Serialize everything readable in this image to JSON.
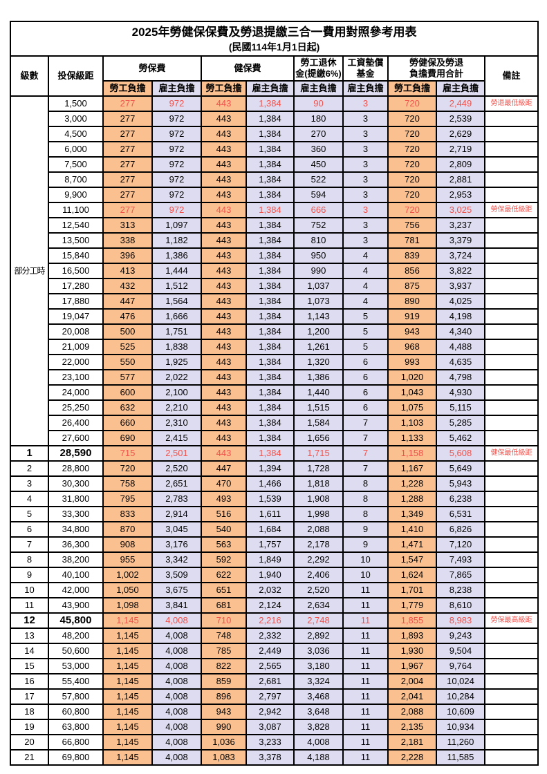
{
  "title": "2025年勞健保保費及勞退提繳三合一費用對照參考用表",
  "subtitle": "(民國114年1月1日起)",
  "colors": {
    "labor_self_bg": "#fac090",
    "employer_bg": "#dedcf0",
    "highlight_red": "#f0524c",
    "border": "#000000"
  },
  "table": {
    "header": {
      "level": "級數",
      "base": "投保級距",
      "labor": "勞保費",
      "health": "健保費",
      "pension_l1": "勞工退休",
      "pension_l2": "金(提繳6%)",
      "wage_l1": "工資墊償",
      "wage_l2": "基金",
      "total_l1": "勞健保及勞退",
      "total_l2": "負擔費用合計",
      "note": "備註",
      "self": "勞工負擔",
      "employer": "雇主負擔"
    },
    "group_label": "部分工時",
    "group_rowspan": 23,
    "rows": [
      {
        "level": "",
        "base": "1,500",
        "v": [
          "277",
          "972",
          "443",
          "1,384",
          "90",
          "3",
          "720",
          "2,449"
        ],
        "note": "勞退最低級距",
        "red": true,
        "big": false
      },
      {
        "level": "",
        "base": "3,000",
        "v": [
          "277",
          "972",
          "443",
          "1,384",
          "180",
          "3",
          "720",
          "2,539"
        ],
        "note": "",
        "red": false,
        "big": false
      },
      {
        "level": "",
        "base": "4,500",
        "v": [
          "277",
          "972",
          "443",
          "1,384",
          "270",
          "3",
          "720",
          "2,629"
        ],
        "note": "",
        "red": false,
        "big": false
      },
      {
        "level": "",
        "base": "6,000",
        "v": [
          "277",
          "972",
          "443",
          "1,384",
          "360",
          "3",
          "720",
          "2,719"
        ],
        "note": "",
        "red": false,
        "big": false
      },
      {
        "level": "",
        "base": "7,500",
        "v": [
          "277",
          "972",
          "443",
          "1,384",
          "450",
          "3",
          "720",
          "2,809"
        ],
        "note": "",
        "red": false,
        "big": false
      },
      {
        "level": "",
        "base": "8,700",
        "v": [
          "277",
          "972",
          "443",
          "1,384",
          "522",
          "3",
          "720",
          "2,881"
        ],
        "note": "",
        "red": false,
        "big": false
      },
      {
        "level": "",
        "base": "9,900",
        "v": [
          "277",
          "972",
          "443",
          "1,384",
          "594",
          "3",
          "720",
          "2,953"
        ],
        "note": "",
        "red": false,
        "big": false
      },
      {
        "level": "",
        "base": "11,100",
        "v": [
          "277",
          "972",
          "443",
          "1,384",
          "666",
          "3",
          "720",
          "3,025"
        ],
        "note": "勞保最低級距",
        "red": true,
        "big": false
      },
      {
        "level": "",
        "base": "12,540",
        "v": [
          "313",
          "1,097",
          "443",
          "1,384",
          "752",
          "3",
          "756",
          "3,237"
        ],
        "note": "",
        "red": false,
        "big": false
      },
      {
        "level": "",
        "base": "13,500",
        "v": [
          "338",
          "1,182",
          "443",
          "1,384",
          "810",
          "3",
          "781",
          "3,379"
        ],
        "note": "",
        "red": false,
        "big": false
      },
      {
        "level": "",
        "base": "15,840",
        "v": [
          "396",
          "1,386",
          "443",
          "1,384",
          "950",
          "4",
          "839",
          "3,724"
        ],
        "note": "",
        "red": false,
        "big": false
      },
      {
        "level": "",
        "base": "16,500",
        "v": [
          "413",
          "1,444",
          "443",
          "1,384",
          "990",
          "4",
          "856",
          "3,822"
        ],
        "note": "",
        "red": false,
        "big": false
      },
      {
        "level": "",
        "base": "17,280",
        "v": [
          "432",
          "1,512",
          "443",
          "1,384",
          "1,037",
          "4",
          "875",
          "3,937"
        ],
        "note": "",
        "red": false,
        "big": false
      },
      {
        "level": "",
        "base": "17,880",
        "v": [
          "447",
          "1,564",
          "443",
          "1,384",
          "1,073",
          "4",
          "890",
          "4,025"
        ],
        "note": "",
        "red": false,
        "big": false
      },
      {
        "level": "",
        "base": "19,047",
        "v": [
          "476",
          "1,666",
          "443",
          "1,384",
          "1,143",
          "5",
          "919",
          "4,198"
        ],
        "note": "",
        "red": false,
        "big": false
      },
      {
        "level": "",
        "base": "20,008",
        "v": [
          "500",
          "1,751",
          "443",
          "1,384",
          "1,200",
          "5",
          "943",
          "4,340"
        ],
        "note": "",
        "red": false,
        "big": false
      },
      {
        "level": "",
        "base": "21,009",
        "v": [
          "525",
          "1,838",
          "443",
          "1,384",
          "1,261",
          "5",
          "968",
          "4,488"
        ],
        "note": "",
        "red": false,
        "big": false
      },
      {
        "level": "",
        "base": "22,000",
        "v": [
          "550",
          "1,925",
          "443",
          "1,384",
          "1,320",
          "6",
          "993",
          "4,635"
        ],
        "note": "",
        "red": false,
        "big": false
      },
      {
        "level": "",
        "base": "23,100",
        "v": [
          "577",
          "2,022",
          "443",
          "1,384",
          "1,386",
          "6",
          "1,020",
          "4,798"
        ],
        "note": "",
        "red": false,
        "big": false
      },
      {
        "level": "",
        "base": "24,000",
        "v": [
          "600",
          "2,100",
          "443",
          "1,384",
          "1,440",
          "6",
          "1,043",
          "4,930"
        ],
        "note": "",
        "red": false,
        "big": false
      },
      {
        "level": "",
        "base": "25,250",
        "v": [
          "632",
          "2,210",
          "443",
          "1,384",
          "1,515",
          "6",
          "1,075",
          "5,115"
        ],
        "note": "",
        "red": false,
        "big": false
      },
      {
        "level": "",
        "base": "26,400",
        "v": [
          "660",
          "2,310",
          "443",
          "1,384",
          "1,584",
          "7",
          "1,103",
          "5,285"
        ],
        "note": "",
        "red": false,
        "big": false
      },
      {
        "level": "",
        "base": "27,600",
        "v": [
          "690",
          "2,415",
          "443",
          "1,384",
          "1,656",
          "7",
          "1,133",
          "5,462"
        ],
        "note": "",
        "red": false,
        "big": false
      },
      {
        "level": "1",
        "base": "28,590",
        "v": [
          "715",
          "2,501",
          "443",
          "1,384",
          "1,715",
          "7",
          "1,158",
          "5,608"
        ],
        "note": "健保最低級距",
        "red": true,
        "big": true
      },
      {
        "level": "2",
        "base": "28,800",
        "v": [
          "720",
          "2,520",
          "447",
          "1,394",
          "1,728",
          "7",
          "1,167",
          "5,649"
        ],
        "note": "",
        "red": false,
        "big": false
      },
      {
        "level": "3",
        "base": "30,300",
        "v": [
          "758",
          "2,651",
          "470",
          "1,466",
          "1,818",
          "8",
          "1,228",
          "5,943"
        ],
        "note": "",
        "red": false,
        "big": false
      },
      {
        "level": "4",
        "base": "31,800",
        "v": [
          "795",
          "2,783",
          "493",
          "1,539",
          "1,908",
          "8",
          "1,288",
          "6,238"
        ],
        "note": "",
        "red": false,
        "big": false
      },
      {
        "level": "5",
        "base": "33,300",
        "v": [
          "833",
          "2,914",
          "516",
          "1,611",
          "1,998",
          "8",
          "1,349",
          "6,531"
        ],
        "note": "",
        "red": false,
        "big": false
      },
      {
        "level": "6",
        "base": "34,800",
        "v": [
          "870",
          "3,045",
          "540",
          "1,684",
          "2,088",
          "9",
          "1,410",
          "6,826"
        ],
        "note": "",
        "red": false,
        "big": false
      },
      {
        "level": "7",
        "base": "36,300",
        "v": [
          "908",
          "3,176",
          "563",
          "1,757",
          "2,178",
          "9",
          "1,471",
          "7,120"
        ],
        "note": "",
        "red": false,
        "big": false
      },
      {
        "level": "8",
        "base": "38,200",
        "v": [
          "955",
          "3,342",
          "592",
          "1,849",
          "2,292",
          "10",
          "1,547",
          "7,493"
        ],
        "note": "",
        "red": false,
        "big": false
      },
      {
        "level": "9",
        "base": "40,100",
        "v": [
          "1,002",
          "3,509",
          "622",
          "1,940",
          "2,406",
          "10",
          "1,624",
          "7,865"
        ],
        "note": "",
        "red": false,
        "big": false
      },
      {
        "level": "10",
        "base": "42,000",
        "v": [
          "1,050",
          "3,675",
          "651",
          "2,032",
          "2,520",
          "11",
          "1,701",
          "8,238"
        ],
        "note": "",
        "red": false,
        "big": false
      },
      {
        "level": "11",
        "base": "43,900",
        "v": [
          "1,098",
          "3,841",
          "681",
          "2,124",
          "2,634",
          "11",
          "1,779",
          "8,610"
        ],
        "note": "",
        "red": false,
        "big": false
      },
      {
        "level": "12",
        "base": "45,800",
        "v": [
          "1,145",
          "4,008",
          "710",
          "2,216",
          "2,748",
          "11",
          "1,855",
          "8,983"
        ],
        "note": "勞保最高級距",
        "red": true,
        "big": true
      },
      {
        "level": "13",
        "base": "48,200",
        "v": [
          "1,145",
          "4,008",
          "748",
          "2,332",
          "2,892",
          "11",
          "1,893",
          "9,243"
        ],
        "note": "",
        "red": false,
        "big": false
      },
      {
        "level": "14",
        "base": "50,600",
        "v": [
          "1,145",
          "4,008",
          "785",
          "2,449",
          "3,036",
          "11",
          "1,930",
          "9,504"
        ],
        "note": "",
        "red": false,
        "big": false
      },
      {
        "level": "15",
        "base": "53,000",
        "v": [
          "1,145",
          "4,008",
          "822",
          "2,565",
          "3,180",
          "11",
          "1,967",
          "9,764"
        ],
        "note": "",
        "red": false,
        "big": false
      },
      {
        "level": "16",
        "base": "55,400",
        "v": [
          "1,145",
          "4,008",
          "859",
          "2,681",
          "3,324",
          "11",
          "2,004",
          "10,024"
        ],
        "note": "",
        "red": false,
        "big": false
      },
      {
        "level": "17",
        "base": "57,800",
        "v": [
          "1,145",
          "4,008",
          "896",
          "2,797",
          "3,468",
          "11",
          "2,041",
          "10,284"
        ],
        "note": "",
        "red": false,
        "big": false
      },
      {
        "level": "18",
        "base": "60,800",
        "v": [
          "1,145",
          "4,008",
          "943",
          "2,942",
          "3,648",
          "11",
          "2,088",
          "10,609"
        ],
        "note": "",
        "red": false,
        "big": false
      },
      {
        "level": "19",
        "base": "63,800",
        "v": [
          "1,145",
          "4,008",
          "990",
          "3,087",
          "3,828",
          "11",
          "2,135",
          "10,934"
        ],
        "note": "",
        "red": false,
        "big": false
      },
      {
        "level": "20",
        "base": "66,800",
        "v": [
          "1,145",
          "4,008",
          "1,036",
          "3,233",
          "4,008",
          "11",
          "2,181",
          "11,260"
        ],
        "note": "",
        "red": false,
        "big": false
      },
      {
        "level": "21",
        "base": "69,800",
        "v": [
          "1,145",
          "4,008",
          "1,083",
          "3,378",
          "4,188",
          "11",
          "2,228",
          "11,585"
        ],
        "note": "",
        "red": false,
        "big": false
      }
    ]
  }
}
